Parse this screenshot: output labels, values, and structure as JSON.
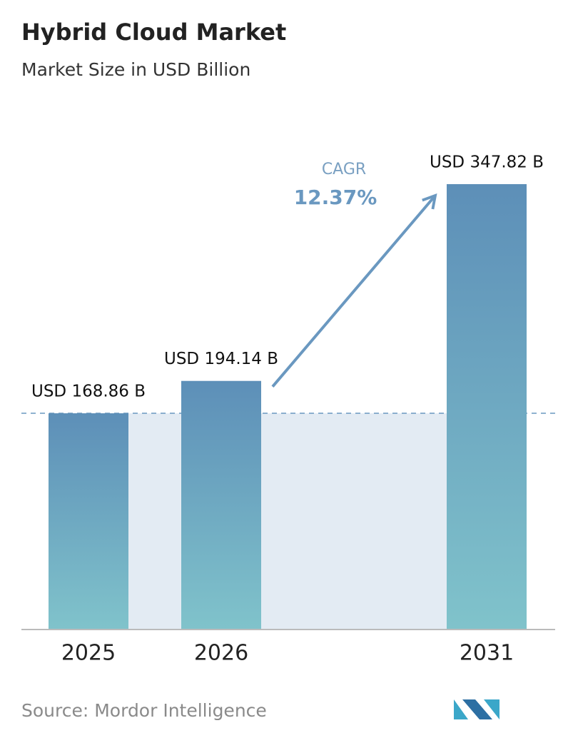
{
  "chart_data": {
    "type": "bar",
    "title": "Hybrid Cloud Market",
    "subtitle": "Market Size in USD Billion",
    "categories": [
      "2025",
      "2026",
      "2031"
    ],
    "values": [
      168.86,
      194.14,
      347.82
    ],
    "value_labels": [
      "USD 168.86 B",
      "USD 194.14 B",
      "USD 347.82 B"
    ],
    "annotation": {
      "label": "CAGR",
      "value": "12.37%"
    },
    "source": "Source:  Mordor Intelligence"
  }
}
